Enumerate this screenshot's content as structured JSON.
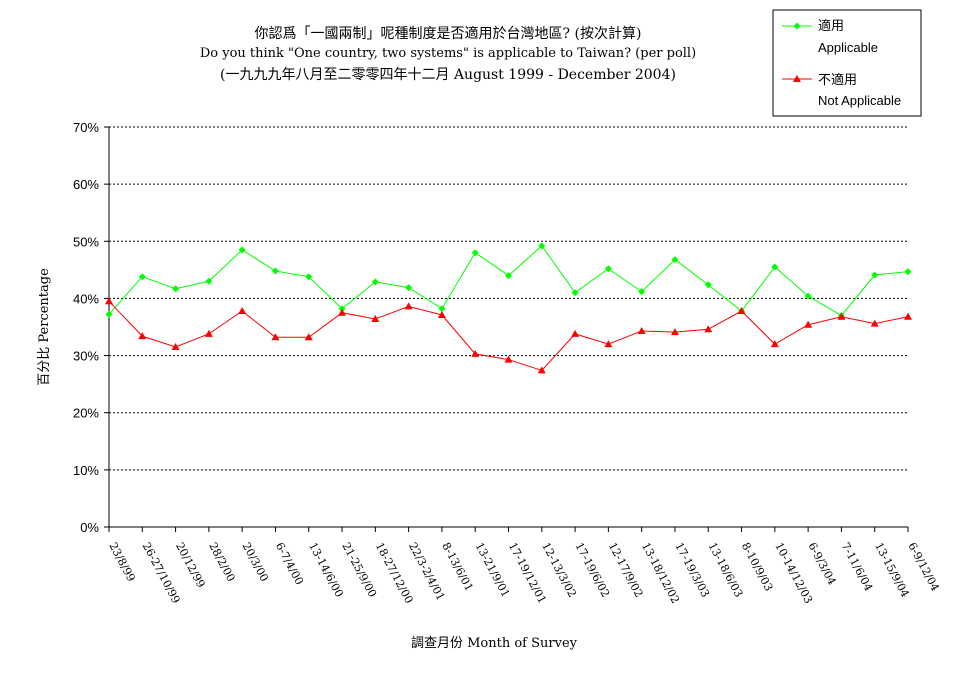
{
  "chart_data": {
    "type": "line",
    "title": "你認爲「一國兩制」呢種制度是否適用於台灣地區? (按次計算)",
    "subtitle": "Do you think \"One country, two systems\" is applicable to Taiwan? (per poll)",
    "date_range": "(一九九九年八月至二零零四年十二月 August 1999 - December 2004)",
    "xlabel": "調查月份 Month of Survey",
    "ylabel": "百分比 Percentage",
    "ylim": [
      0,
      70
    ],
    "yticks": [
      "0%",
      "10%",
      "20%",
      "30%",
      "40%",
      "50%",
      "60%",
      "70%"
    ],
    "grid": "horizontal dashed",
    "legend_position": "top-right",
    "categories": [
      "23/8/99",
      "26-27/10/99",
      "20/12/99",
      "28/2/00",
      "20/3/00",
      "6-7/4/00",
      "13-14/6/00",
      "21-25/9/00",
      "18-27/12/00",
      "22/3-2/4/01",
      "8-13/6/01",
      "13-21/9/01",
      "17-19/12/01",
      "12-13/3/02",
      "17-19/6/02",
      "12-17/9/02",
      "13-18/12/02",
      "17-19/3/03",
      "13-18/6/03",
      "8-10/9/03",
      "10-14/12/03",
      "6-9/3/04",
      "7-11/6/04",
      "13-15/9/04",
      "6-9/12/04"
    ],
    "series": [
      {
        "name_zh": "適用",
        "name_en": "Applicable",
        "color": "#00ff00",
        "marker": "diamond",
        "values": [
          37.2,
          43.8,
          41.7,
          43.0,
          48.5,
          44.8,
          43.8,
          38.2,
          42.9,
          41.9,
          38.2,
          48.0,
          44.0,
          49.2,
          41.0,
          45.2,
          41.2,
          46.8,
          42.4,
          37.8,
          45.5,
          40.4,
          37.0,
          44.1,
          44.7
        ]
      },
      {
        "name_zh": "不適用",
        "name_en": "Not Applicable",
        "color": "#ff0000",
        "marker": "triangle",
        "values": [
          39.5,
          33.4,
          31.5,
          33.8,
          37.8,
          33.2,
          33.2,
          37.5,
          36.4,
          38.6,
          37.1,
          30.3,
          29.3,
          27.4,
          33.8,
          32.0,
          34.3,
          34.1,
          34.6,
          37.8,
          32.0,
          35.4,
          36.8,
          35.6,
          36.8
        ]
      }
    ]
  }
}
